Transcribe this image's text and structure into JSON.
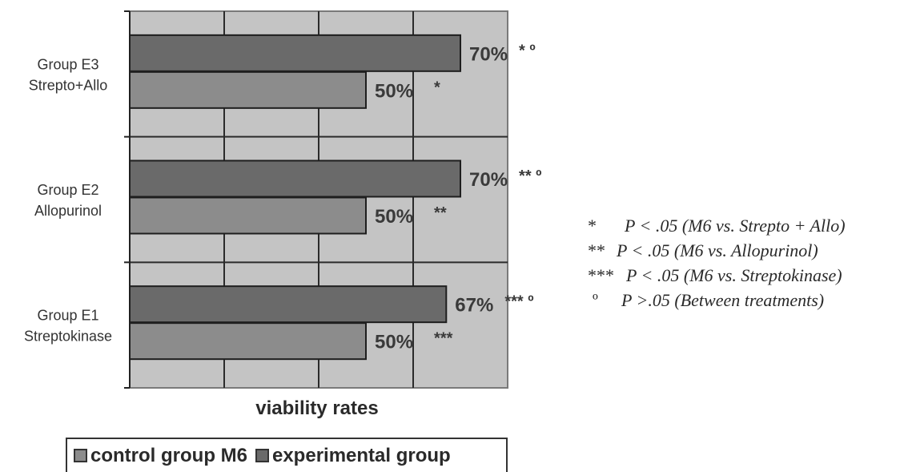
{
  "colors": {
    "plot_background": "#c4c4c4",
    "control_bar": "#8c8c8c",
    "experimental_bar": "#6a6a6a",
    "gridline": "#2b2b2b"
  },
  "chart_data": {
    "type": "bar",
    "orientation": "horizontal",
    "categories": [
      [
        "Group E3",
        "Strepto+Allo"
      ],
      [
        "Group E2",
        "Allopurinol"
      ],
      [
        "Group E1",
        "Streptokinase"
      ]
    ],
    "series": [
      {
        "name": "experimental group",
        "values": [
          70,
          70,
          67
        ],
        "labels": [
          "70%",
          "70%",
          "67%"
        ],
        "significance": [
          "* º",
          "** º",
          "*** º"
        ]
      },
      {
        "name": "control group M6",
        "values": [
          50,
          50,
          50
        ],
        "labels": [
          "50%",
          "50%",
          "50%"
        ],
        "significance": [
          "*",
          "**",
          "***"
        ]
      }
    ],
    "xlabel": "viability rates",
    "xlim": [
      0,
      80
    ],
    "grid": true,
    "legend_position": "bottom"
  },
  "legend": [
    {
      "label": "control group M6",
      "color": "#8c8c8c"
    },
    {
      "label": "experimental group",
      "color": "#6a6a6a"
    }
  ],
  "notes": [
    {
      "mark": "*",
      "text": "P < .05 (M6 vs. Strepto + Allo)"
    },
    {
      "mark": "**",
      "text": "P < .05 (M6 vs. Allopurinol)"
    },
    {
      "mark": "***",
      "text": "P < .05 (M6 vs. Streptokinase)"
    },
    {
      "mark": "º",
      "text": "P >.05 (Between treatments)"
    }
  ]
}
